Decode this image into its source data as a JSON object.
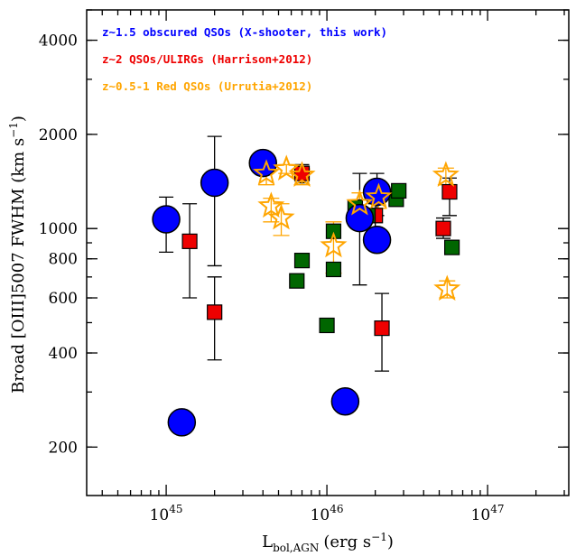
{
  "chart_data": {
    "type": "scatter",
    "xscale": "log",
    "yscale": "log",
    "xlim": [
      3.2e+44,
      3.2e+47
    ],
    "ylim": [
      140,
      5000
    ],
    "xlabel_main": "L",
    "xlabel_sub": "bol,AGN",
    "xlabel_units": "(erg s",
    "xlabel_exp": "−1",
    "xlabel_close": ")",
    "ylabel_main": "Broad [OIII]5007 FWHM (km s",
    "ylabel_exp": "−1",
    "ylabel_close": ")",
    "x_ticks": [
      {
        "value": 1e+45,
        "base": "10",
        "exp": "45"
      },
      {
        "value": 1e+46,
        "base": "10",
        "exp": "46"
      },
      {
        "value": 1e+47,
        "base": "10",
        "exp": "47"
      }
    ],
    "y_ticks": [
      {
        "value": 200,
        "label": "200"
      },
      {
        "value": 400,
        "label": "400"
      },
      {
        "value": 600,
        "label": "600"
      },
      {
        "value": 800,
        "label": "800"
      },
      {
        "value": 1000,
        "label": "1000"
      },
      {
        "value": 2000,
        "label": "2000"
      },
      {
        "value": 4000,
        "label": "4000"
      }
    ],
    "legend_placement": "top-left",
    "series": [
      {
        "name": "z~1.5 obscured QSOs (X-shooter, this work)",
        "marker": "circle",
        "color": "#0000ff",
        "points": [
          {
            "x": 1e+45,
            "y": 1070,
            "ylo": 840,
            "yhi": 1260
          },
          {
            "x": 1.25e+45,
            "y": 240
          },
          {
            "x": 2e+45,
            "y": 1400,
            "ylo": 760,
            "yhi": 1970
          },
          {
            "x": 4e+45,
            "y": 1620
          },
          {
            "x": 1.3e+46,
            "y": 280
          },
          {
            "x": 1.6e+46,
            "y": 1080,
            "ylo": 660,
            "yhi": 1500
          },
          {
            "x": 2.05e+46,
            "y": 1310,
            "ylo": 1100,
            "yhi": 1500
          },
          {
            "x": 2.05e+46,
            "y": 920
          }
        ]
      },
      {
        "name": "z~2 QSOs/ULIRGs (Harrison+2012)",
        "marker": "square",
        "color": "#ee0000",
        "points": [
          {
            "x": 1.4e+45,
            "y": 910,
            "ylo": 600,
            "yhi": 1200
          },
          {
            "x": 2e+45,
            "y": 540,
            "ylo": 380,
            "yhi": 700
          },
          {
            "x": 7e+45,
            "y": 1500,
            "ylo": 1400,
            "yhi": 1600
          },
          {
            "x": 2e+46,
            "y": 1100,
            "ylo": 1000,
            "yhi": 1200
          },
          {
            "x": 2.2e+46,
            "y": 480,
            "ylo": 350,
            "yhi": 620
          },
          {
            "x": 5.3e+46,
            "y": 1000,
            "ylo": 930,
            "yhi": 1080
          },
          {
            "x": 5.8e+46,
            "y": 1310,
            "ylo": 1100,
            "yhi": 1450
          }
        ]
      },
      {
        "name": "",
        "marker": "square",
        "color": "#006600",
        "points": [
          {
            "x": 6.5e+45,
            "y": 680
          },
          {
            "x": 7e+45,
            "y": 790
          },
          {
            "x": 1e+46,
            "y": 490
          },
          {
            "x": 1.1e+46,
            "y": 740
          },
          {
            "x": 1.1e+46,
            "y": 980
          },
          {
            "x": 1.5e+46,
            "y": 1170
          },
          {
            "x": 1.8e+46,
            "y": 1100
          },
          {
            "x": 2.7e+46,
            "y": 1240
          },
          {
            "x": 2.8e+46,
            "y": 1320
          },
          {
            "x": 6e+46,
            "y": 870
          }
        ]
      },
      {
        "name": "z~0.5-1 Red QSOs (Urrutia+2012)",
        "marker": "star",
        "color": "#ffa500",
        "points": [
          {
            "x": 4.2e+45,
            "y": 1500,
            "ylo": 1380,
            "yhi": 1600
          },
          {
            "x": 4.5e+45,
            "y": 1180,
            "ylo": 1050,
            "yhi": 1250
          },
          {
            "x": 5.2e+45,
            "y": 1080,
            "ylo": 950,
            "yhi": 1200
          },
          {
            "x": 5.6e+45,
            "y": 1550,
            "ylo": 1500,
            "yhi": 1600
          },
          {
            "x": 7e+45,
            "y": 1480,
            "ylo": 1380,
            "yhi": 1550
          },
          {
            "x": 1.1e+46,
            "y": 880,
            "ylo": 720,
            "yhi": 1050
          },
          {
            "x": 1.6e+46,
            "y": 1200,
            "ylo": 1100,
            "yhi": 1300
          },
          {
            "x": 2.1e+46,
            "y": 1260,
            "ylo": 1160,
            "yhi": 1360
          },
          {
            "x": 5.5e+46,
            "y": 1480,
            "ylo": 1380,
            "yhi": 1560
          },
          {
            "x": 5.6e+46,
            "y": 640,
            "ylo": 600,
            "yhi": 680
          }
        ]
      }
    ]
  }
}
